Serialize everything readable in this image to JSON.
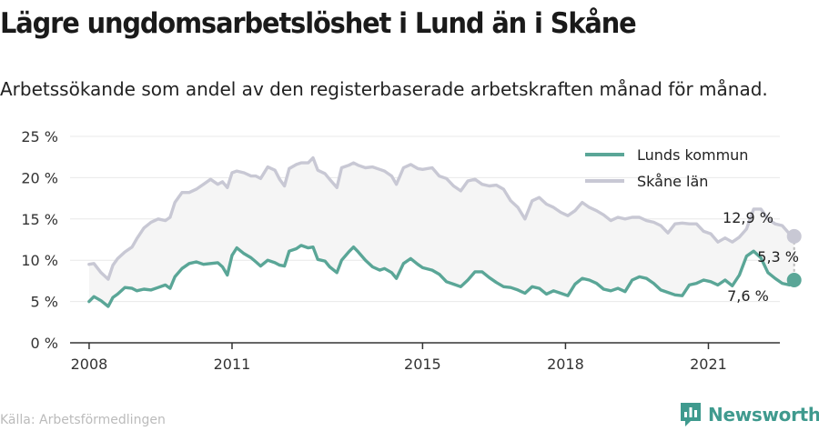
{
  "header": {
    "title": "Lägre ungdomsarbetslöshet i Lund än i Skåne",
    "subtitle": "Arbetssökande som andel av den registerbaserade arbetskraften månad för månad."
  },
  "footer": {
    "source": "Källa: Arbetsförmedlingen",
    "brand": "Newsworthy",
    "brand_icon": "newsworthy-logo-icon",
    "brand_color": "#3f9a8e"
  },
  "chart_data": {
    "type": "line",
    "title": "Lägre ungdomsarbetslöshet i Lund än i Skåne",
    "subtitle": "Arbetssökande som andel av den registerbaserade arbetskraften månad för månad.",
    "xlabel": "",
    "ylabel": "",
    "ylim": [
      0,
      25
    ],
    "xlim": [
      2007.6,
      2022.5
    ],
    "y_ticks": [
      0,
      5,
      10,
      15,
      20,
      25
    ],
    "y_tick_labels": [
      "0 %",
      "5 %",
      "10 %",
      "15 %",
      "20 %",
      "25 %"
    ],
    "x_ticks": [
      2008,
      2011,
      2015,
      2018,
      2021
    ],
    "x_tick_labels": [
      "2008",
      "2011",
      "2015",
      "2018",
      "2021"
    ],
    "grid": true,
    "legend_position": "top-right",
    "series": [
      {
        "name": "Lunds kommun",
        "color": "#5aa697",
        "points": [
          [
            2008.0,
            5.0
          ],
          [
            2008.1,
            5.6
          ],
          [
            2008.25,
            5.1
          ],
          [
            2008.4,
            4.4
          ],
          [
            2008.5,
            5.5
          ],
          [
            2008.6,
            5.9
          ],
          [
            2008.75,
            6.7
          ],
          [
            2008.9,
            6.6
          ],
          [
            2009.0,
            6.3
          ],
          [
            2009.15,
            6.5
          ],
          [
            2009.3,
            6.4
          ],
          [
            2009.45,
            6.7
          ],
          [
            2009.6,
            7.0
          ],
          [
            2009.7,
            6.6
          ],
          [
            2009.8,
            8.0
          ],
          [
            2009.95,
            9.0
          ],
          [
            2010.1,
            9.6
          ],
          [
            2010.25,
            9.8
          ],
          [
            2010.4,
            9.5
          ],
          [
            2010.55,
            9.6
          ],
          [
            2010.7,
            9.7
          ],
          [
            2010.8,
            9.2
          ],
          [
            2010.9,
            8.2
          ],
          [
            2011.0,
            10.6
          ],
          [
            2011.1,
            11.5
          ],
          [
            2011.25,
            10.8
          ],
          [
            2011.4,
            10.3
          ],
          [
            2011.5,
            9.8
          ],
          [
            2011.6,
            9.3
          ],
          [
            2011.75,
            10.0
          ],
          [
            2011.9,
            9.7
          ],
          [
            2012.0,
            9.4
          ],
          [
            2012.1,
            9.3
          ],
          [
            2012.2,
            11.1
          ],
          [
            2012.35,
            11.4
          ],
          [
            2012.45,
            11.8
          ],
          [
            2012.6,
            11.5
          ],
          [
            2012.7,
            11.6
          ],
          [
            2012.8,
            10.1
          ],
          [
            2012.95,
            9.9
          ],
          [
            2013.05,
            9.2
          ],
          [
            2013.2,
            8.5
          ],
          [
            2013.3,
            10.0
          ],
          [
            2013.45,
            11.0
          ],
          [
            2013.55,
            11.6
          ],
          [
            2013.65,
            11.0
          ],
          [
            2013.8,
            10.0
          ],
          [
            2013.95,
            9.2
          ],
          [
            2014.1,
            8.8
          ],
          [
            2014.2,
            9.0
          ],
          [
            2014.35,
            8.5
          ],
          [
            2014.45,
            7.8
          ],
          [
            2014.6,
            9.6
          ],
          [
            2014.75,
            10.2
          ],
          [
            2014.9,
            9.5
          ],
          [
            2015.0,
            9.1
          ],
          [
            2015.2,
            8.8
          ],
          [
            2015.35,
            8.3
          ],
          [
            2015.5,
            7.4
          ],
          [
            2015.65,
            7.1
          ],
          [
            2015.8,
            6.8
          ],
          [
            2015.95,
            7.6
          ],
          [
            2016.1,
            8.6
          ],
          [
            2016.25,
            8.6
          ],
          [
            2016.4,
            7.9
          ],
          [
            2016.55,
            7.3
          ],
          [
            2016.7,
            6.8
          ],
          [
            2016.85,
            6.7
          ],
          [
            2017.0,
            6.4
          ],
          [
            2017.15,
            6.0
          ],
          [
            2017.3,
            6.8
          ],
          [
            2017.45,
            6.6
          ],
          [
            2017.6,
            5.9
          ],
          [
            2017.75,
            6.3
          ],
          [
            2017.9,
            6.0
          ],
          [
            2018.05,
            5.7
          ],
          [
            2018.2,
            7.1
          ],
          [
            2018.35,
            7.8
          ],
          [
            2018.5,
            7.6
          ],
          [
            2018.65,
            7.2
          ],
          [
            2018.8,
            6.5
          ],
          [
            2018.95,
            6.3
          ],
          [
            2019.1,
            6.6
          ],
          [
            2019.25,
            6.2
          ],
          [
            2019.4,
            7.6
          ],
          [
            2019.55,
            8.0
          ],
          [
            2019.7,
            7.8
          ],
          [
            2019.85,
            7.2
          ],
          [
            2020.0,
            6.4
          ],
          [
            2020.15,
            6.1
          ],
          [
            2020.3,
            5.8
          ],
          [
            2020.45,
            5.7
          ],
          [
            2020.6,
            7.0
          ],
          [
            2020.75,
            7.2
          ],
          [
            2020.9,
            7.6
          ],
          [
            2021.05,
            7.4
          ],
          [
            2021.2,
            7.0
          ],
          [
            2021.35,
            7.6
          ],
          [
            2021.5,
            6.9
          ],
          [
            2021.65,
            8.2
          ],
          [
            2021.8,
            10.5
          ],
          [
            2021.95,
            11.1
          ],
          [
            2022.1,
            10.3
          ],
          [
            2022.25,
            8.5
          ],
          [
            2022.4,
            7.8
          ],
          [
            2022.55,
            7.2
          ],
          [
            2022.7,
            7.0
          ],
          [
            2022.8,
            7.6
          ]
        ]
      },
      {
        "name": "Skåne län",
        "color": "#c8c8d4",
        "points": [
          [
            2008.0,
            9.5
          ],
          [
            2008.1,
            9.6
          ],
          [
            2008.25,
            8.5
          ],
          [
            2008.4,
            7.7
          ],
          [
            2008.5,
            9.4
          ],
          [
            2008.6,
            10.2
          ],
          [
            2008.75,
            11.0
          ],
          [
            2008.9,
            11.6
          ],
          [
            2009.0,
            12.6
          ],
          [
            2009.15,
            13.9
          ],
          [
            2009.3,
            14.6
          ],
          [
            2009.45,
            15.0
          ],
          [
            2009.6,
            14.8
          ],
          [
            2009.7,
            15.2
          ],
          [
            2009.8,
            17.0
          ],
          [
            2009.95,
            18.2
          ],
          [
            2010.1,
            18.2
          ],
          [
            2010.25,
            18.6
          ],
          [
            2010.4,
            19.2
          ],
          [
            2010.55,
            19.8
          ],
          [
            2010.7,
            19.2
          ],
          [
            2010.8,
            19.5
          ],
          [
            2010.9,
            18.8
          ],
          [
            2011.0,
            20.6
          ],
          [
            2011.1,
            20.8
          ],
          [
            2011.25,
            20.6
          ],
          [
            2011.4,
            20.2
          ],
          [
            2011.5,
            20.2
          ],
          [
            2011.6,
            19.9
          ],
          [
            2011.75,
            21.3
          ],
          [
            2011.9,
            20.9
          ],
          [
            2012.0,
            19.8
          ],
          [
            2012.1,
            19.0
          ],
          [
            2012.2,
            21.1
          ],
          [
            2012.35,
            21.6
          ],
          [
            2012.45,
            21.8
          ],
          [
            2012.6,
            21.8
          ],
          [
            2012.7,
            22.4
          ],
          [
            2012.8,
            20.9
          ],
          [
            2012.95,
            20.5
          ],
          [
            2013.05,
            19.8
          ],
          [
            2013.2,
            18.8
          ],
          [
            2013.3,
            21.2
          ],
          [
            2013.45,
            21.5
          ],
          [
            2013.55,
            21.8
          ],
          [
            2013.65,
            21.5
          ],
          [
            2013.8,
            21.2
          ],
          [
            2013.95,
            21.3
          ],
          [
            2014.1,
            21.0
          ],
          [
            2014.2,
            20.8
          ],
          [
            2014.35,
            20.2
          ],
          [
            2014.45,
            19.2
          ],
          [
            2014.6,
            21.2
          ],
          [
            2014.75,
            21.6
          ],
          [
            2014.9,
            21.1
          ],
          [
            2015.0,
            21.0
          ],
          [
            2015.2,
            21.2
          ],
          [
            2015.35,
            20.2
          ],
          [
            2015.5,
            19.9
          ],
          [
            2015.65,
            19.0
          ],
          [
            2015.8,
            18.4
          ],
          [
            2015.95,
            19.6
          ],
          [
            2016.1,
            19.8
          ],
          [
            2016.25,
            19.2
          ],
          [
            2016.4,
            19.0
          ],
          [
            2016.55,
            19.1
          ],
          [
            2016.7,
            18.6
          ],
          [
            2016.85,
            17.2
          ],
          [
            2017.0,
            16.4
          ],
          [
            2017.15,
            15.0
          ],
          [
            2017.3,
            17.2
          ],
          [
            2017.45,
            17.6
          ],
          [
            2017.6,
            16.8
          ],
          [
            2017.75,
            16.4
          ],
          [
            2017.9,
            15.8
          ],
          [
            2018.05,
            15.4
          ],
          [
            2018.2,
            16.0
          ],
          [
            2018.35,
            17.0
          ],
          [
            2018.5,
            16.4
          ],
          [
            2018.65,
            16.0
          ],
          [
            2018.8,
            15.5
          ],
          [
            2018.95,
            14.8
          ],
          [
            2019.1,
            15.2
          ],
          [
            2019.25,
            15.0
          ],
          [
            2019.4,
            15.2
          ],
          [
            2019.55,
            15.2
          ],
          [
            2019.7,
            14.8
          ],
          [
            2019.85,
            14.6
          ],
          [
            2020.0,
            14.2
          ],
          [
            2020.15,
            13.3
          ],
          [
            2020.3,
            14.4
          ],
          [
            2020.45,
            14.5
          ],
          [
            2020.6,
            14.4
          ],
          [
            2020.75,
            14.4
          ],
          [
            2020.9,
            13.5
          ],
          [
            2021.05,
            13.2
          ],
          [
            2021.2,
            12.2
          ],
          [
            2021.35,
            12.7
          ],
          [
            2021.5,
            12.2
          ],
          [
            2021.65,
            12.8
          ],
          [
            2021.8,
            13.8
          ],
          [
            2021.95,
            16.2
          ],
          [
            2022.1,
            16.2
          ],
          [
            2022.25,
            15.0
          ],
          [
            2022.4,
            14.4
          ],
          [
            2022.55,
            14.2
          ],
          [
            2022.7,
            13.2
          ],
          [
            2022.8,
            12.9
          ]
        ]
      }
    ],
    "annotations": {
      "end_label_skane": "12,9 %",
      "end_label_lund": "7,6 %",
      "difference_label": "5,3 %"
    },
    "area_fill_color": "#f5f5f5",
    "grid_color": "#e8e8e8",
    "axis_color": "#333333"
  }
}
